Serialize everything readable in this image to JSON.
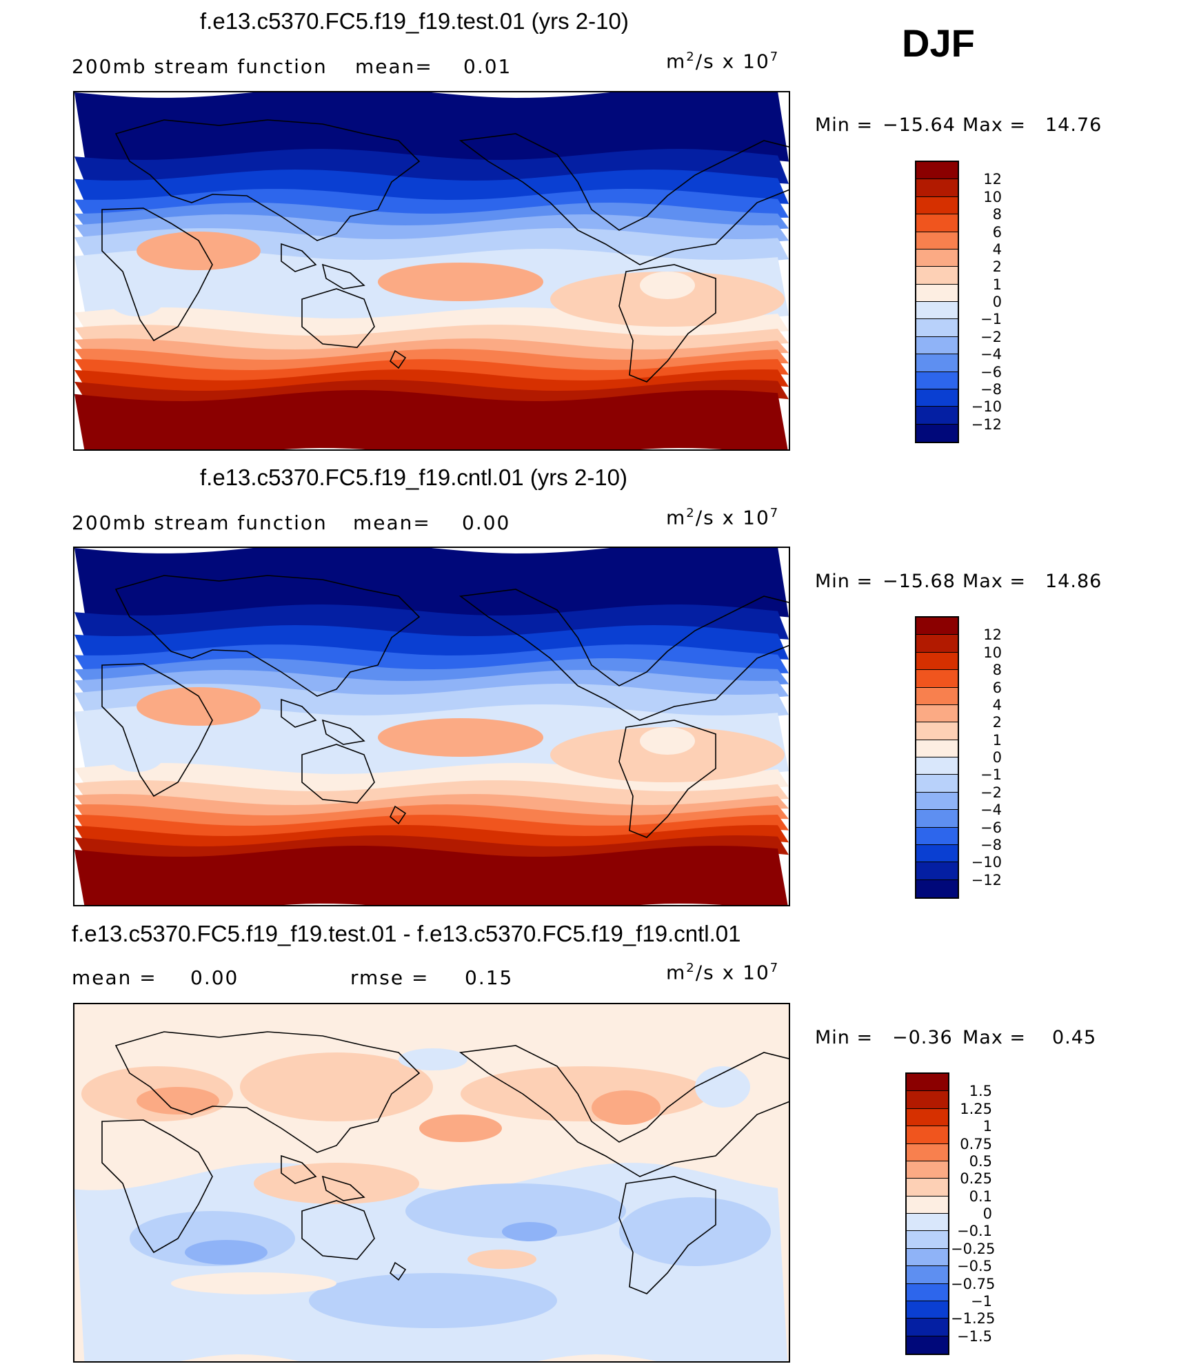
{
  "season": "DJF",
  "chart_data": [
    {
      "type": "heatmap",
      "title": "f.e13.c5370.FC5.f19_f19.test.01 (yrs 2-10)",
      "subtitle": "200mb stream function",
      "mean_label": "mean=",
      "mean_value": "0.01",
      "units": "m²/s x 10⁷",
      "units_base": "m",
      "units_base_exp": "2",
      "units_mid": "/s x 10",
      "units_exp": "7",
      "min_label": "Min =",
      "min_value": "−15.64",
      "max_label": "Max =",
      "max_value": "14.76",
      "colorbar_levels": [
        "12",
        "10",
        "8",
        "6",
        "4",
        "2",
        "1",
        "0",
        "−1",
        "−2",
        "−4",
        "−6",
        "−8",
        "−10",
        "−12"
      ],
      "colorbar_colors": [
        "#8b0000",
        "#b21a00",
        "#d63000",
        "#f0551e",
        "#f8804e",
        "#fbaa84",
        "#fdd0b5",
        "#fdeee2",
        "#d9e7fb",
        "#b8d1fa",
        "#8fb3f7",
        "#5e8ff1",
        "#2d66ec",
        "#0a3fd2",
        "#041fa3",
        "#00087a"
      ]
    },
    {
      "type": "heatmap",
      "title": "f.e13.c5370.FC5.f19_f19.cntl.01 (yrs 2-10)",
      "subtitle": "200mb stream function",
      "mean_label": "mean=",
      "mean_value": "0.00",
      "units": "m²/s x 10⁷",
      "units_base": "m",
      "units_base_exp": "2",
      "units_mid": "/s x 10",
      "units_exp": "7",
      "min_label": "Min =",
      "min_value": "−15.68",
      "max_label": "Max =",
      "max_value": "14.86",
      "colorbar_levels": [
        "12",
        "10",
        "8",
        "6",
        "4",
        "2",
        "1",
        "0",
        "−1",
        "−2",
        "−4",
        "−6",
        "−8",
        "−10",
        "−12"
      ],
      "colorbar_colors": [
        "#8b0000",
        "#b21a00",
        "#d63000",
        "#f0551e",
        "#f8804e",
        "#fbaa84",
        "#fdd0b5",
        "#fdeee2",
        "#d9e7fb",
        "#b8d1fa",
        "#8fb3f7",
        "#5e8ff1",
        "#2d66ec",
        "#0a3fd2",
        "#041fa3",
        "#00087a"
      ]
    },
    {
      "type": "heatmap",
      "title": "f.e13.c5370.FC5.f19_f19.test.01 - f.e13.c5370.FC5.f19_f19.cntl.01",
      "mean_label": "mean =",
      "mean_value": "0.00",
      "rmse_label": "rmse =",
      "rmse_value": "0.15",
      "units": "m²/s x 10⁷",
      "units_base": "m",
      "units_base_exp": "2",
      "units_mid": "/s x 10",
      "units_exp": "7",
      "min_label": "Min =",
      "min_value": "−0.36",
      "max_label": "Max =",
      "max_value": "0.45",
      "colorbar_levels": [
        "1.5",
        "1.25",
        "1",
        "0.75",
        "0.5",
        "0.25",
        "0.1",
        "0",
        "−0.1",
        "−0.25",
        "−0.5",
        "−0.75",
        "−1",
        "−1.25",
        "−1.5"
      ],
      "colorbar_colors": [
        "#8b0000",
        "#b21a00",
        "#d63000",
        "#f0551e",
        "#f8804e",
        "#fbaa84",
        "#fdd0b5",
        "#fdeee2",
        "#d9e7fb",
        "#b8d1fa",
        "#8fb3f7",
        "#5e8ff1",
        "#2d66ec",
        "#0a3fd2",
        "#041fa3",
        "#00087a"
      ]
    }
  ]
}
